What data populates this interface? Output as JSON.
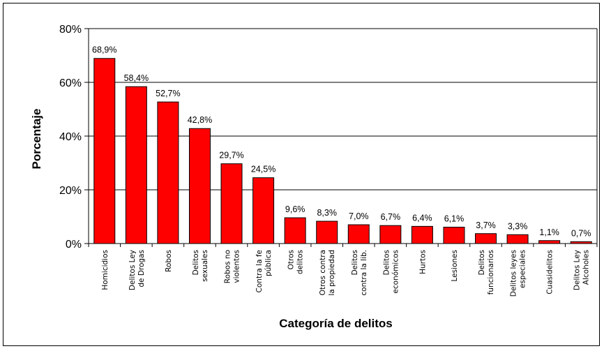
{
  "chart_data": {
    "type": "bar",
    "title": "",
    "xlabel": "Categoría de delitos",
    "ylabel": "Porcentaje",
    "ylim": [
      0,
      80
    ],
    "yticks": [
      0,
      20,
      40,
      60,
      80
    ],
    "ytick_labels": [
      "0%",
      "20%",
      "40%",
      "60%",
      "80%"
    ],
    "grid": true,
    "legend": "none",
    "bar_color": "#ff0000",
    "categories": [
      "Homicidios",
      "Delitos Ley de Drogas",
      "Robos",
      "Delitos sexuales",
      "Robos no violentos",
      "Contra la fe pública",
      "Otros delitos",
      "Otros contra la propiedad",
      "Delitos contra la lib.",
      "Delitos económicos",
      "Hurtos",
      "Lesiones",
      "Delitos funcionarios",
      "Delitos leyes especiales",
      "Cuasidelitos",
      "Delitos Ley Alcoholes"
    ],
    "category_lines": [
      [
        "Homicidios"
      ],
      [
        "Delitos Ley",
        "de Drogas"
      ],
      [
        "Robos"
      ],
      [
        "Delitos",
        "sexuales"
      ],
      [
        "Robos no",
        "violentos"
      ],
      [
        "Contra la fe",
        "pública"
      ],
      [
        "Otros",
        "delitos"
      ],
      [
        "Otros contra",
        "la propiedad"
      ],
      [
        "Delitos",
        "contra la lib."
      ],
      [
        "Delitos",
        "económicos"
      ],
      [
        "Hurtos"
      ],
      [
        "Lesiones"
      ],
      [
        "Delitos",
        "funcionarios"
      ],
      [
        "Delitos leyes",
        "especiales"
      ],
      [
        "Cuasidelitos"
      ],
      [
        "Delitos Ley",
        "Alcoholes"
      ]
    ],
    "values": [
      68.9,
      58.4,
      52.7,
      42.8,
      29.7,
      24.5,
      9.6,
      8.3,
      7.0,
      6.7,
      6.4,
      6.1,
      3.7,
      3.3,
      1.1,
      0.7
    ],
    "data_labels": [
      "68,9%",
      "58,4%",
      "52,7%",
      "42,8%",
      "29,7%",
      "24,5%",
      "9,6%",
      "8,3%",
      "7,0%",
      "6,7%",
      "6,4%",
      "6,1%",
      "3,7%",
      "3,3%",
      "1,1%",
      "0,7%"
    ]
  }
}
